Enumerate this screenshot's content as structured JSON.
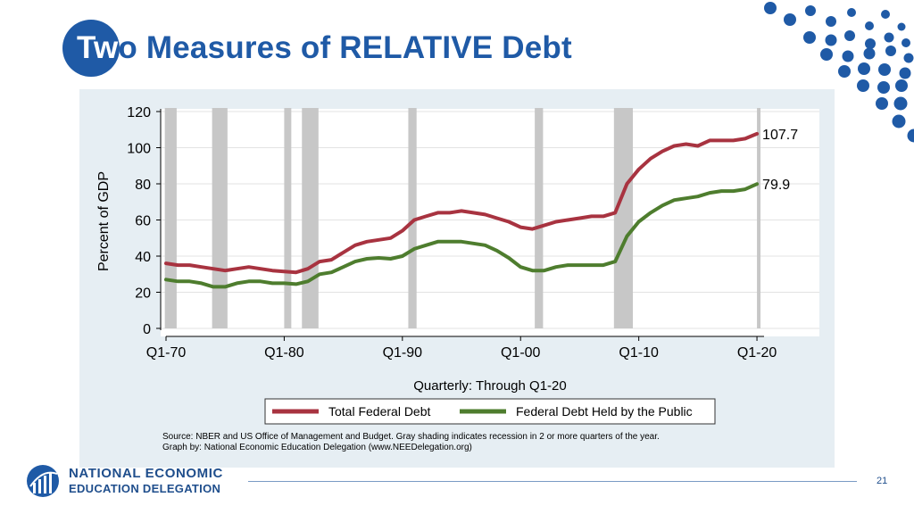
{
  "slide": {
    "title_first": "Tw",
    "title_rest": "o Measures of RELATIVE Debt",
    "page_number": "21"
  },
  "footer": {
    "org_line1": "NATIONAL ECONOMIC",
    "org_line2": "EDUCATION DELEGATION"
  },
  "colors": {
    "brand_blue": "#1F5AA6",
    "total_debt": "#A83340",
    "public_debt": "#4E7D2E",
    "recession": "#C7C7C7"
  },
  "chart_data": {
    "type": "line",
    "ylabel": "Percent of GDP",
    "xlabel": "Quarterly: Through Q1-20",
    "ylim": [
      0,
      120
    ],
    "yticks": [
      0,
      20,
      40,
      60,
      80,
      100,
      120
    ],
    "xlim": [
      1970,
      2020.6
    ],
    "xtick_labels": [
      "Q1-70",
      "Q1-80",
      "Q1-90",
      "Q1-00",
      "Q1-10",
      "Q1-20"
    ],
    "xtick_values": [
      1970,
      1980,
      1990,
      2000,
      2010,
      2020
    ],
    "grid": true,
    "recessions": [
      [
        1969.9,
        1970.9
      ],
      [
        1973.9,
        1975.2
      ],
      [
        1980.0,
        1980.6
      ],
      [
        1981.5,
        1982.9
      ],
      [
        1990.5,
        1991.2
      ],
      [
        2001.2,
        2001.9
      ],
      [
        2007.9,
        2009.5
      ],
      [
        2020.0,
        2020.3
      ]
    ],
    "series": [
      {
        "name": "Total Federal Debt",
        "color": "#A83340",
        "end_label": "107.7",
        "points": [
          [
            1970,
            36
          ],
          [
            1971,
            35
          ],
          [
            1972,
            35
          ],
          [
            1973,
            34
          ],
          [
            1974,
            33
          ],
          [
            1975,
            32
          ],
          [
            1976,
            33
          ],
          [
            1977,
            34
          ],
          [
            1978,
            33
          ],
          [
            1979,
            32
          ],
          [
            1980,
            31.5
          ],
          [
            1981,
            31
          ],
          [
            1982,
            33
          ],
          [
            1983,
            37
          ],
          [
            1984,
            38
          ],
          [
            1985,
            42
          ],
          [
            1986,
            46
          ],
          [
            1987,
            48
          ],
          [
            1988,
            49
          ],
          [
            1989,
            50
          ],
          [
            1990,
            54
          ],
          [
            1991,
            60
          ],
          [
            1992,
            62
          ],
          [
            1993,
            64
          ],
          [
            1994,
            64
          ],
          [
            1995,
            65
          ],
          [
            1996,
            64
          ],
          [
            1997,
            63
          ],
          [
            1998,
            61
          ],
          [
            1999,
            59
          ],
          [
            2000,
            56
          ],
          [
            2001,
            55
          ],
          [
            2002,
            57
          ],
          [
            2003,
            59
          ],
          [
            2004,
            60
          ],
          [
            2005,
            61
          ],
          [
            2006,
            62
          ],
          [
            2007,
            62
          ],
          [
            2008,
            64
          ],
          [
            2009,
            80
          ],
          [
            2010,
            88
          ],
          [
            2011,
            94
          ],
          [
            2012,
            98
          ],
          [
            2013,
            101
          ],
          [
            2014,
            102
          ],
          [
            2015,
            101
          ],
          [
            2016,
            104
          ],
          [
            2017,
            104
          ],
          [
            2018,
            104
          ],
          [
            2019,
            105
          ],
          [
            2020,
            107.7
          ]
        ]
      },
      {
        "name": "Federal Debt Held by the Public",
        "color": "#4E7D2E",
        "end_label": "79.9",
        "points": [
          [
            1970,
            27
          ],
          [
            1971,
            26
          ],
          [
            1972,
            26
          ],
          [
            1973,
            25
          ],
          [
            1974,
            23
          ],
          [
            1975,
            23
          ],
          [
            1976,
            25
          ],
          [
            1977,
            26
          ],
          [
            1978,
            26
          ],
          [
            1979,
            25
          ],
          [
            1980,
            25
          ],
          [
            1981,
            24.5
          ],
          [
            1982,
            26
          ],
          [
            1983,
            30
          ],
          [
            1984,
            31
          ],
          [
            1985,
            34
          ],
          [
            1986,
            37
          ],
          [
            1987,
            38.5
          ],
          [
            1988,
            39
          ],
          [
            1989,
            38.5
          ],
          [
            1990,
            40
          ],
          [
            1991,
            44
          ],
          [
            1992,
            46
          ],
          [
            1993,
            48
          ],
          [
            1994,
            48
          ],
          [
            1995,
            48
          ],
          [
            1996,
            47
          ],
          [
            1997,
            46
          ],
          [
            1998,
            43
          ],
          [
            1999,
            39
          ],
          [
            2000,
            34
          ],
          [
            2001,
            32
          ],
          [
            2002,
            32
          ],
          [
            2003,
            34
          ],
          [
            2004,
            35
          ],
          [
            2005,
            35
          ],
          [
            2006,
            35
          ],
          [
            2007,
            35
          ],
          [
            2008,
            37
          ],
          [
            2009,
            51
          ],
          [
            2010,
            59
          ],
          [
            2011,
            64
          ],
          [
            2012,
            68
          ],
          [
            2013,
            71
          ],
          [
            2014,
            72
          ],
          [
            2015,
            73
          ],
          [
            2016,
            75
          ],
          [
            2017,
            76
          ],
          [
            2018,
            76
          ],
          [
            2019,
            77
          ],
          [
            2020,
            79.9
          ]
        ]
      }
    ],
    "legend_position": "bottom",
    "source_line1": "Source: NBER and US Office of Management and Budget. Gray shading indicates recession in 2 or more quarters of the year.",
    "source_line2": "Graph by: National Economic Education Delegation (www.NEEDelegation.org)"
  }
}
